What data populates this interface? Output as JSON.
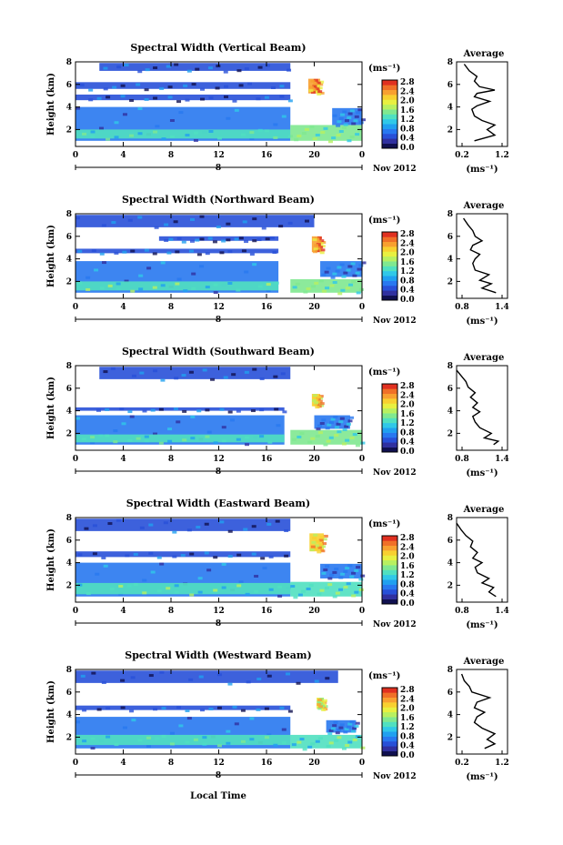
{
  "figure": {
    "x_axis_label": "Local Time",
    "month_label": "Nov 2012",
    "day_label": "8",
    "cbar_unit": "(ms⁻¹)",
    "avg_title": "Average",
    "avg_xlabel": "(ms⁻¹)"
  },
  "colorbar": {
    "ticks": [
      "2.8",
      "2.4",
      "2.0",
      "1.6",
      "1.2",
      "0.8",
      "0.4",
      "0.0"
    ],
    "colors": [
      "#101050",
      "#3030a0",
      "#2850d8",
      "#2878f0",
      "#20a0f0",
      "#30c8e8",
      "#50e0c0",
      "#80e890",
      "#b8f060",
      "#e8f040",
      "#f8d030",
      "#f8a030",
      "#f07028",
      "#e03020"
    ]
  },
  "chart_data": [
    {
      "type": "heatmap",
      "title": "Spectral Width (Vertical Beam)",
      "xlabel": "",
      "ylabel": "Height (km)",
      "x_ticks": [
        "0",
        "4",
        "8",
        "12",
        "16",
        "20",
        "0"
      ],
      "y_ticks": [
        "2",
        "4",
        "6",
        "8"
      ],
      "xlim": [
        0,
        24
      ],
      "ylim": [
        0.5,
        8
      ],
      "layers": [
        {
          "x": [
            0,
            18
          ],
          "y": [
            1.0,
            4.0
          ],
          "value": 0.7
        },
        {
          "x": [
            0,
            18
          ],
          "y": [
            1.2,
            2.0
          ],
          "value": 1.2
        },
        {
          "x": [
            0,
            18
          ],
          "y": [
            4.6,
            5.1
          ],
          "value": 0.4
        },
        {
          "x": [
            0,
            18
          ],
          "y": [
            5.6,
            6.2
          ],
          "value": 0.4
        },
        {
          "x": [
            2,
            18
          ],
          "y": [
            7.2,
            7.9
          ],
          "value": 0.4
        },
        {
          "x": [
            18,
            24
          ],
          "y": [
            1.0,
            2.4
          ],
          "value": 1.4
        },
        {
          "x": [
            21.5,
            24
          ],
          "y": [
            2.4,
            3.9
          ],
          "value": 0.6
        },
        {
          "x": [
            19.5,
            20.5
          ],
          "y": [
            5.2,
            6.5
          ],
          "value": 2.3
        }
      ],
      "profile": {
        "x_ticks": [
          "0.2",
          "1.2"
        ],
        "xlim": [
          0.2,
          1.2
        ],
        "points": [
          [
            0.55,
            1.0
          ],
          [
            0.95,
            1.5
          ],
          [
            0.8,
            2.0
          ],
          [
            0.95,
            2.4
          ],
          [
            0.7,
            2.8
          ],
          [
            0.55,
            3.2
          ],
          [
            0.5,
            3.8
          ],
          [
            0.6,
            4.1
          ],
          [
            0.85,
            4.5
          ],
          [
            0.55,
            4.9
          ],
          [
            0.6,
            5.2
          ],
          [
            0.95,
            5.5
          ],
          [
            0.65,
            5.8
          ],
          [
            0.55,
            6.3
          ],
          [
            0.6,
            6.7
          ],
          [
            0.45,
            7.2
          ],
          [
            0.35,
            7.8
          ]
        ]
      }
    },
    {
      "type": "heatmap",
      "title": "Spectral Width (Northward Beam)",
      "xlabel": "",
      "ylabel": "Height (km)",
      "x_ticks": [
        "0",
        "4",
        "8",
        "12",
        "16",
        "20",
        "0"
      ],
      "y_ticks": [
        "2",
        "4",
        "6",
        "8"
      ],
      "xlim": [
        0,
        24
      ],
      "ylim": [
        0.5,
        8
      ],
      "layers": [
        {
          "x": [
            0,
            17
          ],
          "y": [
            1.0,
            3.8
          ],
          "value": 0.7
        },
        {
          "x": [
            0,
            17
          ],
          "y": [
            1.2,
            2.0
          ],
          "value": 1.3
        },
        {
          "x": [
            0,
            17
          ],
          "y": [
            4.5,
            4.9
          ],
          "value": 0.4
        },
        {
          "x": [
            7,
            17
          ],
          "y": [
            5.6,
            6.0
          ],
          "value": 0.4
        },
        {
          "x": [
            0,
            20
          ],
          "y": [
            6.8,
            7.9
          ],
          "value": 0.4
        },
        {
          "x": [
            18,
            24
          ],
          "y": [
            1.0,
            2.2
          ],
          "value": 1.4
        },
        {
          "x": [
            20.5,
            24
          ],
          "y": [
            2.4,
            3.8
          ],
          "value": 0.6
        },
        {
          "x": [
            19.8,
            20.6
          ],
          "y": [
            4.6,
            6.0
          ],
          "value": 2.3
        }
      ],
      "profile": {
        "x_ticks": [
          "0.8",
          "1.4"
        ],
        "xlim": [
          0.5,
          1.6
        ],
        "points": [
          [
            1.35,
            1.0
          ],
          [
            1.05,
            1.4
          ],
          [
            1.25,
            1.8
          ],
          [
            1.0,
            2.1
          ],
          [
            1.2,
            2.6
          ],
          [
            0.9,
            3.0
          ],
          [
            0.85,
            3.6
          ],
          [
            0.9,
            4.0
          ],
          [
            1.0,
            4.4
          ],
          [
            0.8,
            4.8
          ],
          [
            0.85,
            5.2
          ],
          [
            1.05,
            5.6
          ],
          [
            0.9,
            6.0
          ],
          [
            0.85,
            6.5
          ],
          [
            0.75,
            7.0
          ],
          [
            0.65,
            7.6
          ]
        ]
      }
    },
    {
      "type": "heatmap",
      "title": "Spectral Width (Southward Beam)",
      "xlabel": "",
      "ylabel": "Height (km)",
      "x_ticks": [
        "0",
        "4",
        "8",
        "12",
        "16",
        "20",
        "0"
      ],
      "y_ticks": [
        "2",
        "4",
        "6",
        "8"
      ],
      "xlim": [
        0,
        24
      ],
      "ylim": [
        0.5,
        8
      ],
      "layers": [
        {
          "x": [
            0,
            17.5
          ],
          "y": [
            1.0,
            3.6
          ],
          "value": 0.7
        },
        {
          "x": [
            0,
            17.5
          ],
          "y": [
            1.2,
            1.9
          ],
          "value": 1.2
        },
        {
          "x": [
            0,
            17.5
          ],
          "y": [
            4.0,
            4.3
          ],
          "value": 0.4
        },
        {
          "x": [
            2,
            18
          ],
          "y": [
            6.8,
            7.9
          ],
          "value": 0.4
        },
        {
          "x": [
            18,
            24
          ],
          "y": [
            1.0,
            2.3
          ],
          "value": 1.4
        },
        {
          "x": [
            20,
            23
          ],
          "y": [
            2.4,
            3.6
          ],
          "value": 0.6
        },
        {
          "x": [
            19.8,
            20.5
          ],
          "y": [
            4.4,
            5.5
          ],
          "value": 2.2
        }
      ],
      "profile": {
        "x_ticks": [
          "0.8",
          "1.4"
        ],
        "xlim": [
          0.5,
          1.6
        ],
        "points": [
          [
            1.3,
            1.0
          ],
          [
            1.4,
            1.3
          ],
          [
            1.1,
            1.6
          ],
          [
            1.25,
            2.0
          ],
          [
            1.0,
            2.5
          ],
          [
            0.9,
            3.0
          ],
          [
            0.85,
            3.5
          ],
          [
            1.0,
            3.9
          ],
          [
            0.85,
            4.3
          ],
          [
            0.95,
            4.7
          ],
          [
            0.8,
            5.2
          ],
          [
            0.9,
            5.6
          ],
          [
            0.75,
            6.1
          ],
          [
            0.7,
            6.6
          ],
          [
            0.6,
            7.1
          ],
          [
            0.5,
            7.6
          ]
        ]
      }
    },
    {
      "type": "heatmap",
      "title": "Spectral Width (Eastward Beam)",
      "xlabel": "",
      "ylabel": "Height (km)",
      "x_ticks": [
        "0",
        "4",
        "8",
        "12",
        "16",
        "20",
        "0"
      ],
      "y_ticks": [
        "2",
        "4",
        "6",
        "8"
      ],
      "xlim": [
        0,
        24
      ],
      "ylim": [
        0.5,
        8
      ],
      "layers": [
        {
          "x": [
            0,
            18
          ],
          "y": [
            1.0,
            4.0
          ],
          "value": 0.7
        },
        {
          "x": [
            0,
            18
          ],
          "y": [
            1.2,
            2.2
          ],
          "value": 1.3
        },
        {
          "x": [
            0,
            18
          ],
          "y": [
            4.5,
            5.0
          ],
          "value": 0.4
        },
        {
          "x": [
            0,
            18
          ],
          "y": [
            6.8,
            7.9
          ],
          "value": 0.4
        },
        {
          "x": [
            18,
            24
          ],
          "y": [
            1.0,
            2.3
          ],
          "value": 1.3
        },
        {
          "x": [
            20.5,
            24
          ],
          "y": [
            2.6,
            3.9
          ],
          "value": 0.6
        },
        {
          "x": [
            19.6,
            20.8
          ],
          "y": [
            5.0,
            6.6
          ],
          "value": 2.2
        }
      ],
      "profile": {
        "x_ticks": [
          "0.8",
          "1.4"
        ],
        "xlim": [
          0.5,
          1.6
        ],
        "points": [
          [
            1.35,
            1.0
          ],
          [
            1.2,
            1.4
          ],
          [
            1.3,
            1.8
          ],
          [
            1.05,
            2.2
          ],
          [
            1.2,
            2.6
          ],
          [
            0.95,
            3.1
          ],
          [
            0.9,
            3.6
          ],
          [
            1.05,
            4.0
          ],
          [
            0.85,
            4.4
          ],
          [
            0.95,
            4.9
          ],
          [
            0.8,
            5.4
          ],
          [
            0.85,
            5.9
          ],
          [
            0.7,
            6.4
          ],
          [
            0.6,
            6.9
          ],
          [
            0.5,
            7.5
          ]
        ]
      }
    },
    {
      "type": "heatmap",
      "title": "Spectral Width (Westward Beam)",
      "xlabel": "",
      "ylabel": "Height (km)",
      "x_ticks": [
        "0",
        "4",
        "8",
        "12",
        "16",
        "20",
        "0"
      ],
      "y_ticks": [
        "2",
        "4",
        "6",
        "8"
      ],
      "xlim": [
        0,
        24
      ],
      "ylim": [
        0.5,
        8
      ],
      "layers": [
        {
          "x": [
            0,
            18
          ],
          "y": [
            1.0,
            3.8
          ],
          "value": 0.7
        },
        {
          "x": [
            0,
            18
          ],
          "y": [
            1.3,
            2.2
          ],
          "value": 1.2
        },
        {
          "x": [
            0,
            18
          ],
          "y": [
            4.4,
            4.8
          ],
          "value": 0.4
        },
        {
          "x": [
            0,
            22
          ],
          "y": [
            6.8,
            7.9
          ],
          "value": 0.4
        },
        {
          "x": [
            18,
            24
          ],
          "y": [
            1.0,
            2.2
          ],
          "value": 1.3
        },
        {
          "x": [
            21,
            23.5
          ],
          "y": [
            2.4,
            3.5
          ],
          "value": 0.6
        },
        {
          "x": [
            20.2,
            20.8
          ],
          "y": [
            4.5,
            5.5
          ],
          "value": 2.0
        }
      ],
      "profile": {
        "x_ticks": [
          "0.2",
          "1.2"
        ],
        "xlim": [
          0.2,
          1.2
        ],
        "points": [
          [
            0.75,
            1.0
          ],
          [
            0.95,
            1.4
          ],
          [
            0.8,
            1.8
          ],
          [
            0.95,
            2.3
          ],
          [
            0.7,
            2.8
          ],
          [
            0.55,
            3.3
          ],
          [
            0.6,
            3.8
          ],
          [
            0.75,
            4.2
          ],
          [
            0.55,
            4.6
          ],
          [
            0.6,
            5.1
          ],
          [
            0.85,
            5.5
          ],
          [
            0.5,
            6.0
          ],
          [
            0.45,
            6.5
          ],
          [
            0.35,
            7.0
          ],
          [
            0.3,
            7.6
          ]
        ]
      }
    }
  ]
}
